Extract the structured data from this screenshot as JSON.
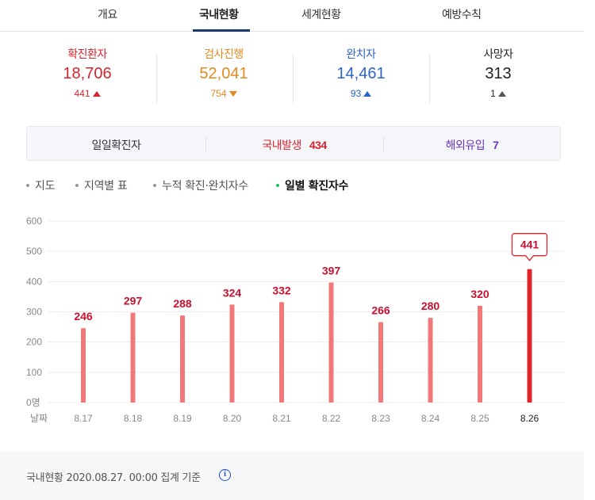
{
  "tabs": [
    {
      "label": "개요"
    },
    {
      "label": "국내현황"
    },
    {
      "label": "세계현황"
    },
    {
      "label": "예방수칙"
    }
  ],
  "stats": {
    "confirmed": {
      "label": "확진환자",
      "value": "18,706",
      "change": "441",
      "direction": "up",
      "color": "#d4252f"
    },
    "testing": {
      "label": "검사진행",
      "value": "52,041",
      "change": "754",
      "direction": "down",
      "color": "#e5891e"
    },
    "recovered": {
      "label": "완치자",
      "value": "14,461",
      "change": "93",
      "direction": "up",
      "color": "#2c64c6"
    },
    "deaths": {
      "label": "사망자",
      "value": "313",
      "change": "1",
      "direction": "up",
      "color": "#222222"
    }
  },
  "daily": {
    "title": "일일확진자",
    "domestic_label": "국내발생",
    "domestic_value": "434",
    "imported_label": "해외유입",
    "imported_value": "7"
  },
  "subnav": [
    {
      "label": "지도"
    },
    {
      "label": "지역별 표"
    },
    {
      "label": "누적 확진·완치자수"
    },
    {
      "label": "일별 확진자수"
    }
  ],
  "chart_data": {
    "type": "bar",
    "categories": [
      "8.17",
      "8.18",
      "8.19",
      "8.20",
      "8.21",
      "8.22",
      "8.23",
      "8.24",
      "8.25",
      "8.26"
    ],
    "values": [
      246,
      297,
      288,
      324,
      332,
      397,
      266,
      280,
      320,
      441
    ],
    "ytick_labels": [
      "0명",
      "100",
      "200",
      "300",
      "400",
      "500",
      "600"
    ],
    "ylim": [
      0,
      600
    ],
    "xlabel": "날짜",
    "bar_color": "#f07878",
    "highlight_color": "#e0242e",
    "label_color": "#c8102e",
    "highlight_index": 9
  },
  "footer": {
    "text": "국내현황 2020.08.27. 00:00 집계 기준",
    "info_icon": "info-icon"
  }
}
